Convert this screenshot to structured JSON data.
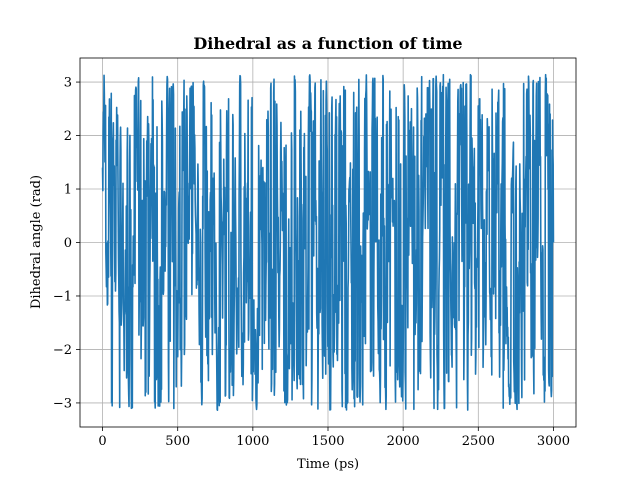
{
  "chart_data": {
    "type": "line",
    "title": "Dihedral as a function of time",
    "xlabel": "Time (ps)",
    "ylabel": "Dihedral angle (rad)",
    "xlim": [
      -150,
      3150
    ],
    "ylim": [
      -3.45,
      3.45
    ],
    "xticks": [
      0,
      500,
      1000,
      1500,
      2000,
      2500,
      3000
    ],
    "yticks": [
      -3,
      -2,
      -1,
      0,
      1,
      2,
      3
    ],
    "xtick_labels": [
      "0",
      "500",
      "1000",
      "1500",
      "2000",
      "2500",
      "3000"
    ],
    "ytick_labels": [
      "−3",
      "−2",
      "−1",
      "0",
      "1",
      "2",
      "3"
    ],
    "grid": true,
    "color": "#1f77b4",
    "series": [
      {
        "x_range": [
          0,
          3000
        ],
        "samples": 1500,
        "y_range": [
          -3.14,
          3.14
        ],
        "note_values": "dense oscillating trace between about -3.1 and 3.1 rad",
        "y_first": 1.4,
        "y_last": 0.0
      }
    ]
  }
}
